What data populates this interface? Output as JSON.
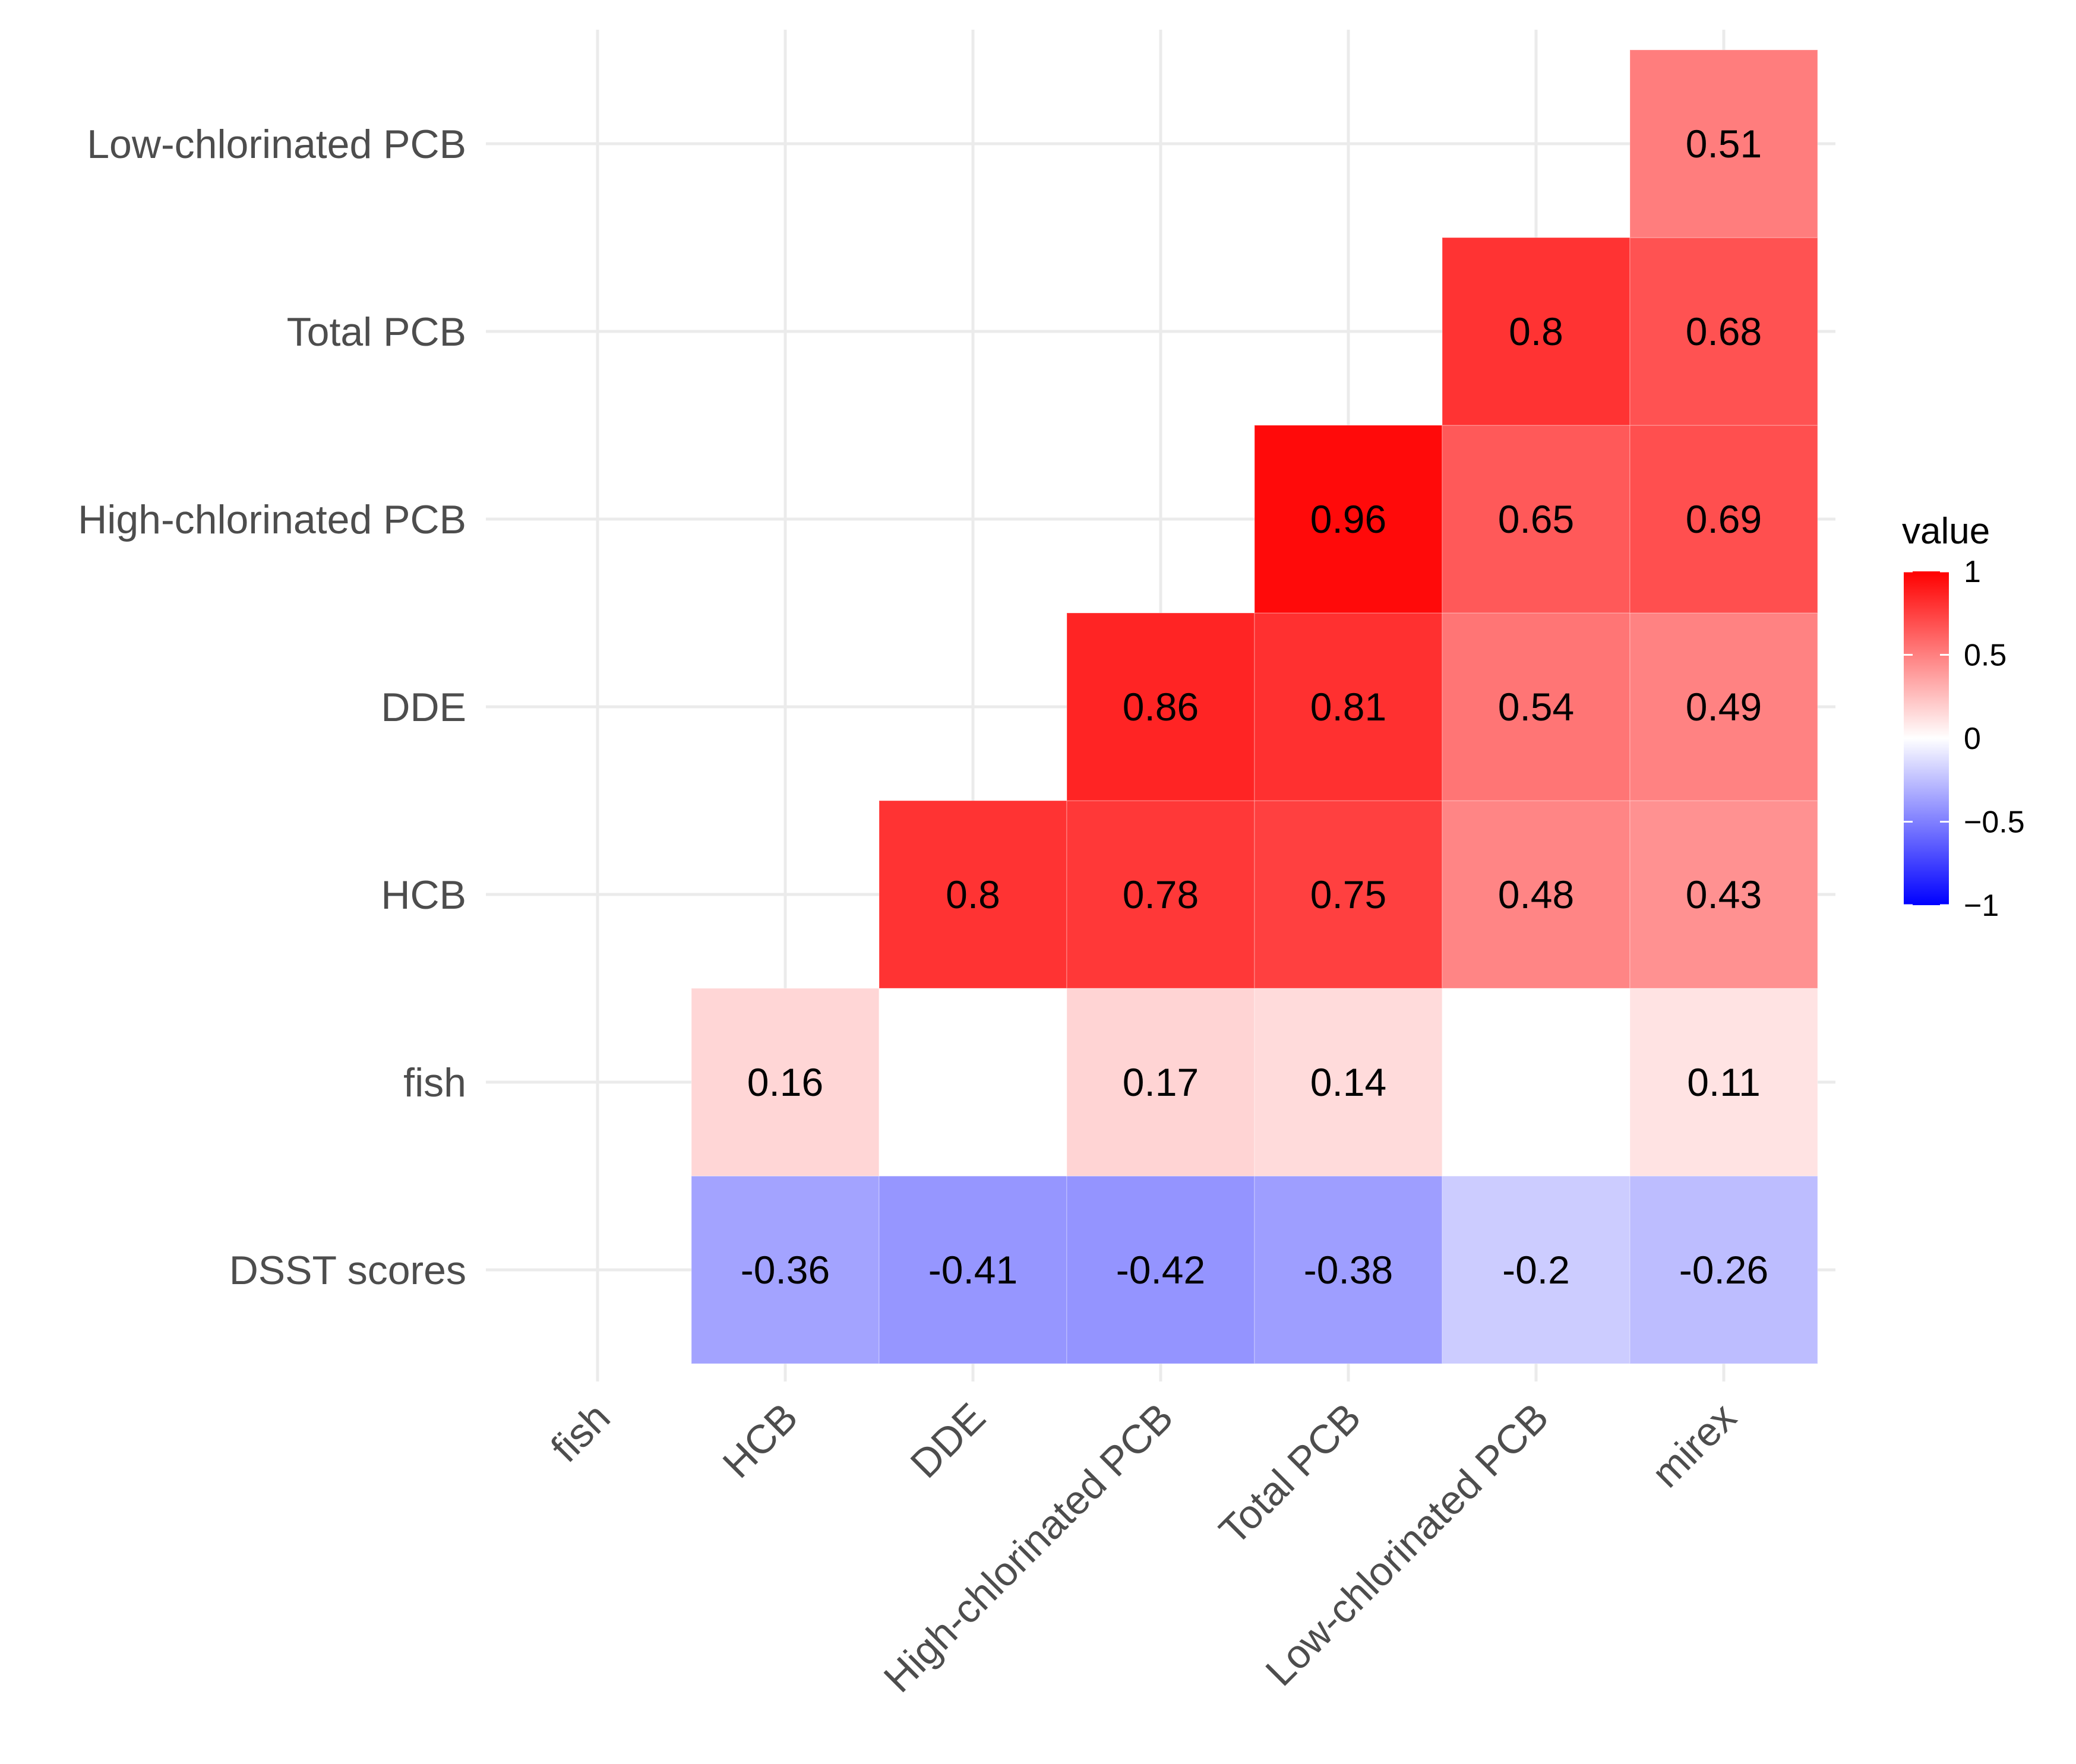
{
  "chart_data": {
    "type": "heatmap",
    "title": "",
    "xlabel": "",
    "ylabel": "",
    "x_categories": [
      "fish",
      "HCB",
      "DDE",
      "High-chlorinated PCB",
      "Total PCB",
      "Low-chlorinated PCB",
      "mirex"
    ],
    "y_categories": [
      "DSST scores",
      "fish",
      "HCB",
      "DDE",
      "High-chlorinated PCB",
      "Total PCB",
      "Low-chlorinated PCB"
    ],
    "cells": [
      {
        "x": "HCB",
        "y": "DSST scores",
        "value": -0.36,
        "label": "-0.36"
      },
      {
        "x": "DDE",
        "y": "DSST scores",
        "value": -0.41,
        "label": "-0.41"
      },
      {
        "x": "High-chlorinated PCB",
        "y": "DSST scores",
        "value": -0.42,
        "label": "-0.42"
      },
      {
        "x": "Total PCB",
        "y": "DSST scores",
        "value": -0.38,
        "label": "-0.38"
      },
      {
        "x": "Low-chlorinated PCB",
        "y": "DSST scores",
        "value": -0.2,
        "label": "-0.2"
      },
      {
        "x": "mirex",
        "y": "DSST scores",
        "value": -0.26,
        "label": "-0.26"
      },
      {
        "x": "HCB",
        "y": "fish",
        "value": 0.16,
        "label": "0.16"
      },
      {
        "x": "DDE",
        "y": "fish",
        "value": 0.0,
        "label": ""
      },
      {
        "x": "High-chlorinated PCB",
        "y": "fish",
        "value": 0.17,
        "label": "0.17"
      },
      {
        "x": "Total PCB",
        "y": "fish",
        "value": 0.14,
        "label": "0.14"
      },
      {
        "x": "Low-chlorinated PCB",
        "y": "fish",
        "value": 0.0,
        "label": ""
      },
      {
        "x": "mirex",
        "y": "fish",
        "value": 0.11,
        "label": "0.11"
      },
      {
        "x": "DDE",
        "y": "HCB",
        "value": 0.8,
        "label": "0.8"
      },
      {
        "x": "High-chlorinated PCB",
        "y": "HCB",
        "value": 0.78,
        "label": "0.78"
      },
      {
        "x": "Total PCB",
        "y": "HCB",
        "value": 0.75,
        "label": "0.75"
      },
      {
        "x": "Low-chlorinated PCB",
        "y": "HCB",
        "value": 0.48,
        "label": "0.48"
      },
      {
        "x": "mirex",
        "y": "HCB",
        "value": 0.43,
        "label": "0.43"
      },
      {
        "x": "High-chlorinated PCB",
        "y": "DDE",
        "value": 0.86,
        "label": "0.86"
      },
      {
        "x": "Total PCB",
        "y": "DDE",
        "value": 0.81,
        "label": "0.81"
      },
      {
        "x": "Low-chlorinated PCB",
        "y": "DDE",
        "value": 0.54,
        "label": "0.54"
      },
      {
        "x": "mirex",
        "y": "DDE",
        "value": 0.49,
        "label": "0.49"
      },
      {
        "x": "Total PCB",
        "y": "High-chlorinated PCB",
        "value": 0.96,
        "label": "0.96"
      },
      {
        "x": "Low-chlorinated PCB",
        "y": "High-chlorinated PCB",
        "value": 0.65,
        "label": "0.65"
      },
      {
        "x": "mirex",
        "y": "High-chlorinated PCB",
        "value": 0.69,
        "label": "0.69"
      },
      {
        "x": "Low-chlorinated PCB",
        "y": "Total PCB",
        "value": 0.8,
        "label": "0.8"
      },
      {
        "x": "mirex",
        "y": "Total PCB",
        "value": 0.68,
        "label": "0.68"
      },
      {
        "x": "mirex",
        "y": "Low-chlorinated PCB",
        "value": 0.51,
        "label": "0.51"
      }
    ],
    "color_scale": {
      "low": "#0000ff",
      "mid": "#ffffff",
      "high": "#ff0000",
      "limits": [
        -1,
        1
      ]
    },
    "legend": {
      "title": "value",
      "position": "right",
      "ticks": [
        {
          "value": 1,
          "label": "1"
        },
        {
          "value": 0.5,
          "label": "0.5"
        },
        {
          "value": 0,
          "label": "0"
        },
        {
          "value": -0.5,
          "label": "−0.5"
        },
        {
          "value": -1,
          "label": "−1"
        }
      ]
    },
    "grid": true
  }
}
